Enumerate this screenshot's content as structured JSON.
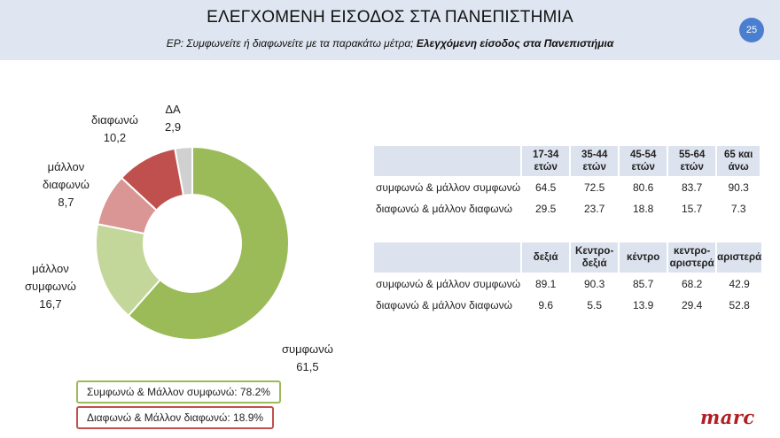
{
  "header": {
    "title": "ΕΛΕΓΧΟΜΕΝΗ ΕΙΣΟΔΟΣ ΣΤΑ ΠΑΝΕΠΙΣΤΗΜΙΑ",
    "subtitle_question": "ΕΡ: Συμφωνείτε ή διαφωνείτε με τα παρακάτω μέτρα;",
    "subtitle_topic": "Ελεγχόμενη είσοδος στα Πανεπιστήμια",
    "page_number": "25"
  },
  "chart_data": {
    "type": "pie",
    "donut": true,
    "start": "top, clockwise",
    "slices": [
      {
        "name_lines": [
          "συμφωνώ"
        ],
        "value": 61.5,
        "value_text": "61,5",
        "color": "#9bbb59"
      },
      {
        "name_lines": [
          "μάλλον",
          "συμφωνώ"
        ],
        "value": 16.7,
        "value_text": "16,7",
        "color": "#c4d79b"
      },
      {
        "name_lines": [
          "μάλλον",
          "διαφωνώ"
        ],
        "value": 8.7,
        "value_text": "8,7",
        "color": "#da9694"
      },
      {
        "name_lines": [
          "διαφωνώ"
        ],
        "value": 10.2,
        "value_text": "10,2",
        "color": "#c0504d"
      },
      {
        "name_lines": [
          "ΔΑ"
        ],
        "value": 2.9,
        "value_text": "2,9",
        "color": "#d0d0d0"
      }
    ]
  },
  "age_table": {
    "columns": [
      [
        "17-34",
        "ετών"
      ],
      [
        "35-44",
        "ετών"
      ],
      [
        "45-54",
        "ετών"
      ],
      [
        "55-64",
        "ετών"
      ],
      [
        "65 και",
        "άνω"
      ]
    ],
    "rows": [
      {
        "label": "συμφωνώ & μάλλον συμφωνώ",
        "values": [
          "64.5",
          "72.5",
          "80.6",
          "83.7",
          "90.3"
        ]
      },
      {
        "label": "διαφωνώ & μάλλον διαφωνώ",
        "values": [
          "29.5",
          "23.7",
          "18.8",
          "15.7",
          "7.3"
        ]
      }
    ]
  },
  "ideology_table": {
    "columns": [
      [
        "δεξιά"
      ],
      [
        "Κεντρο-",
        "δεξιά"
      ],
      [
        "κέντρο"
      ],
      [
        "κεντρο-",
        "αριστερά"
      ],
      [
        "αριστερά"
      ]
    ],
    "rows": [
      {
        "label": "συμφωνώ & μάλλον συμφωνώ",
        "values": [
          "89.1",
          "90.3",
          "85.7",
          "68.2",
          "42.9"
        ]
      },
      {
        "label": "διαφωνώ & μάλλον διαφωνώ",
        "values": [
          "9.6",
          "5.5",
          "13.9",
          "29.4",
          "52.8"
        ]
      }
    ]
  },
  "summary": {
    "agree": "Συμφωνώ & Μάλλον συμφωνώ: 78.2%",
    "disagree": "Διαφωνώ & Μάλλον διαφωνώ: 18.9%"
  },
  "logo": "marc",
  "colors": {
    "header_bg": "#dfe6f1",
    "badge": "#4a7fcf",
    "agree": "#9bbb59",
    "disagree": "#c0504d",
    "logo": "#b11e23"
  }
}
